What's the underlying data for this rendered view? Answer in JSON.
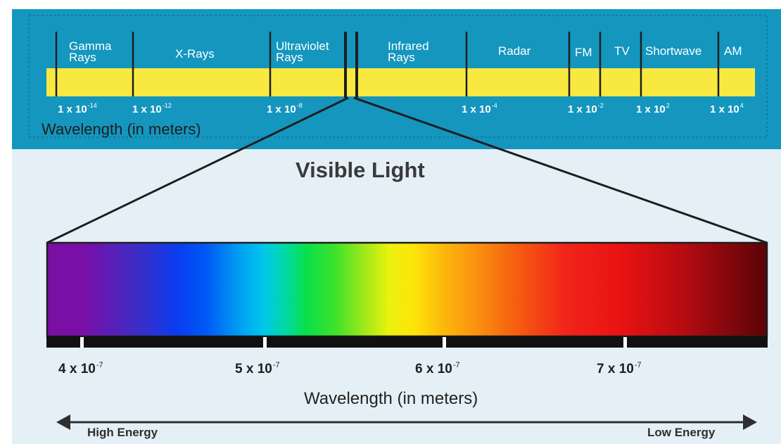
{
  "spectrum": {
    "bands": [
      {
        "id": "gamma",
        "lines": [
          "Gamma",
          "Rays"
        ]
      },
      {
        "id": "xray",
        "lines": [
          "X-Rays"
        ]
      },
      {
        "id": "uv",
        "lines": [
          "Ultraviolet",
          "Rays"
        ]
      },
      {
        "id": "ir",
        "lines": [
          "Infrared",
          "Rays"
        ]
      },
      {
        "id": "radar",
        "lines": [
          "Radar"
        ]
      },
      {
        "id": "fm",
        "lines": [
          "FM"
        ]
      },
      {
        "id": "tv",
        "lines": [
          "TV"
        ]
      },
      {
        "id": "shortwave",
        "lines": [
          "Shortwave"
        ]
      },
      {
        "id": "am",
        "lines": [
          "AM"
        ]
      }
    ],
    "ticks": [
      {
        "base": "1 x 10",
        "exp": "-14"
      },
      {
        "base": "1 x 10",
        "exp": "-12"
      },
      {
        "base": "1 x 10",
        "exp": "-8"
      },
      {
        "base": "1 x 10",
        "exp": "-4"
      },
      {
        "base": "1 x 10",
        "exp": "-2"
      },
      {
        "base": "1 x 10",
        "exp": "2"
      },
      {
        "base": "1 x 10",
        "exp": "4"
      }
    ],
    "axis_label": "Wavelength (in meters)"
  },
  "visible": {
    "title": "Visible Light",
    "ticks": [
      {
        "base": "4 x 10",
        "exp": "-7"
      },
      {
        "base": "5 x 10",
        "exp": "-7"
      },
      {
        "base": "6 x 10",
        "exp": "-7"
      },
      {
        "base": "7 x 10",
        "exp": "-7"
      }
    ],
    "axis_label": "Wavelength (in meters)",
    "energy_left": "High Energy",
    "energy_right": "Low Energy"
  },
  "colors": {
    "top_panel": "#1496bf",
    "lower_panel": "#e4f0f5",
    "bar": "#f7e940",
    "divider": "#1e1e1e",
    "text_dark": "#2f2f2f"
  }
}
